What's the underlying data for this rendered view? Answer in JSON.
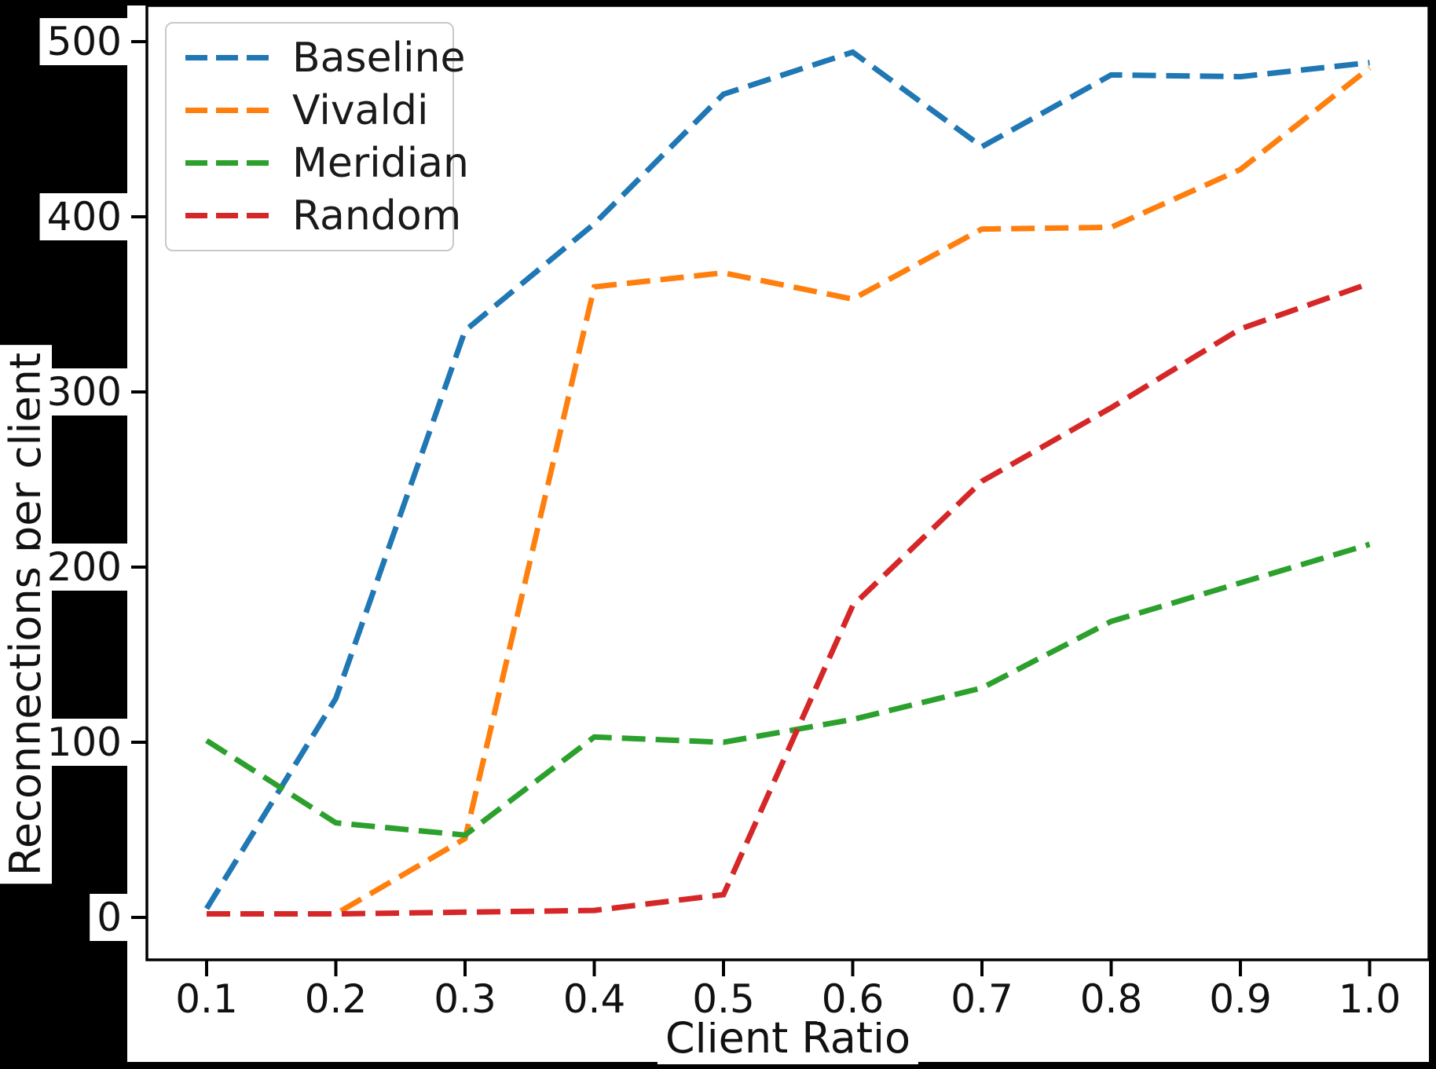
{
  "figure": {
    "background": "#000000",
    "plot_background": "#ffffff",
    "spine_color": "#000000",
    "text_color": "#111111"
  },
  "chart_data": {
    "type": "line",
    "title": "",
    "xlabel": "Client Ratio",
    "ylabel": "Reconnections per client",
    "x": [
      0.1,
      0.2,
      0.3,
      0.4,
      0.5,
      0.6,
      0.7,
      0.8,
      0.9,
      1.0
    ],
    "x_tick_labels": [
      "0.1",
      "0.2",
      "0.3",
      "0.4",
      "0.5",
      "0.6",
      "0.7",
      "0.8",
      "0.9",
      "1.0"
    ],
    "y_ticks": [
      0,
      100,
      200,
      300,
      400,
      500
    ],
    "y_tick_labels": [
      "0",
      "100",
      "200",
      "300",
      "400",
      "500"
    ],
    "xlim": [
      0.054,
      1.046
    ],
    "ylim": [
      -24,
      521
    ],
    "grid": false,
    "line_style": "dashed",
    "legend_position": "upper-left",
    "series": [
      {
        "name": "Baseline",
        "color": "#1f77b4",
        "values": [
          5,
          125,
          335,
          396,
          470,
          494,
          440,
          481,
          480,
          488
        ]
      },
      {
        "name": "Vivaldi",
        "color": "#ff7f0e",
        "values": [
          2,
          2,
          45,
          360,
          368,
          353,
          393,
          394,
          427,
          485
        ]
      },
      {
        "name": "Meridian",
        "color": "#2ca02c",
        "values": [
          101,
          54,
          47,
          103,
          100,
          113,
          131,
          169,
          191,
          213
        ]
      },
      {
        "name": "Random",
        "color": "#d62728",
        "values": [
          2,
          2,
          3,
          4,
          13,
          178,
          249,
          291,
          336,
          362
        ]
      }
    ]
  }
}
